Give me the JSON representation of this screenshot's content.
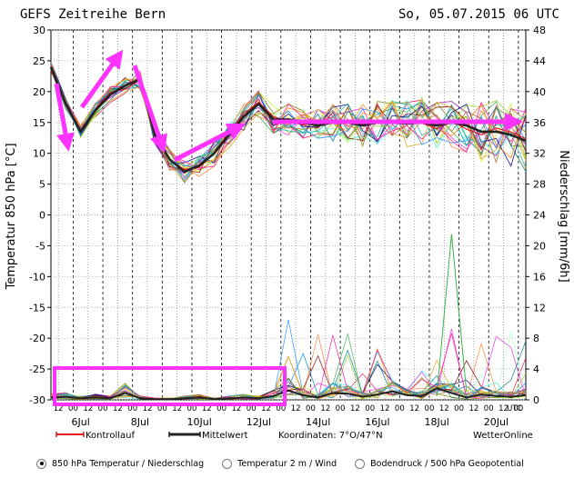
{
  "header": {
    "title": "GEFS Zeitreihe Bern",
    "date": "So, 05.07.2015 06 UTC"
  },
  "chart_data": {
    "type": "line",
    "title": "GEFS Zeitreihe Bern",
    "left_axis": {
      "label": "Temperatur 850 hPa [°C]",
      "ylim": [
        -30,
        30
      ],
      "ticks": [
        30,
        25,
        20,
        15,
        10,
        5,
        0,
        -5,
        -10,
        -15,
        -20,
        -25,
        -30
      ]
    },
    "right_axis": {
      "label": "Niederschlag [mm/6h]",
      "ylim": [
        0,
        48
      ],
      "ticks": [
        48,
        44,
        40,
        36,
        32,
        28,
        24,
        20,
        16,
        12,
        8,
        4,
        0
      ]
    },
    "x_axis": {
      "start_hour": 6,
      "hours_total": 384,
      "hour_labels": [
        "12",
        "00",
        "12",
        "00",
        "12",
        "00",
        "12",
        "00",
        "12",
        "00",
        "12",
        "00",
        "12",
        "00",
        "12",
        "00",
        "12",
        "00",
        "12",
        "00",
        "12",
        "00",
        "12",
        "00",
        "12",
        "00",
        "12",
        "00",
        "12",
        "00",
        "12",
        "00"
      ],
      "day_labels": [
        "6Jul",
        "8Jul",
        "10Jul",
        "12Jul",
        "14Jul",
        "16Jul",
        "18Jul",
        "20Jul"
      ],
      "unit": "UTC"
    },
    "series_temperature": {
      "mean_name": "Mittelwert",
      "control_name": "Kontrollauf",
      "mean_values": [
        24,
        18,
        13.5,
        17,
        19.5,
        21,
        22,
        13,
        9,
        7,
        8,
        10,
        13,
        16,
        18,
        15.5,
        15.5,
        15,
        14.5,
        15,
        15,
        14.5,
        15,
        15,
        14.8,
        15,
        14.5,
        15,
        14.5,
        13.5,
        13.5,
        13,
        12
      ],
      "member_count": 20
    },
    "series_precip": {
      "mean_values": [
        0.3,
        0.4,
        0.2,
        0.3,
        0.2,
        0.9,
        0.2,
        0.1,
        0.1,
        0.2,
        0.3,
        0.1,
        0.2,
        0.3,
        0.2,
        0.5,
        1.2,
        0.6,
        0.3,
        0.9,
        0.8,
        0.4,
        0.7,
        1.1,
        0.6,
        0.5,
        1.5,
        0.9,
        0.3,
        0.7,
        0.5,
        0.4,
        0.6
      ],
      "max_peak": 21.5
    },
    "annotations": {
      "arrows": 5,
      "highlight_box": "precipitation days 6-12 Jul"
    }
  },
  "legend": {
    "control": "Kontrollauf",
    "mean": "Mittelwert",
    "coordinates": "Koordinaten: 7°O/47°N",
    "brand": "WetterOnline"
  },
  "colors": {
    "control": "#e21a1a",
    "mean": "#222222",
    "annotation": "#ff33ff",
    "grid": "#000000"
  },
  "controls": {
    "option_1": "850 hPa Temperatur / Niederschlag",
    "option_2": "Temperatur 2 m / Wind",
    "option_3": "Bodendruck / 500 hPa Geopotential",
    "selected": 1
  }
}
